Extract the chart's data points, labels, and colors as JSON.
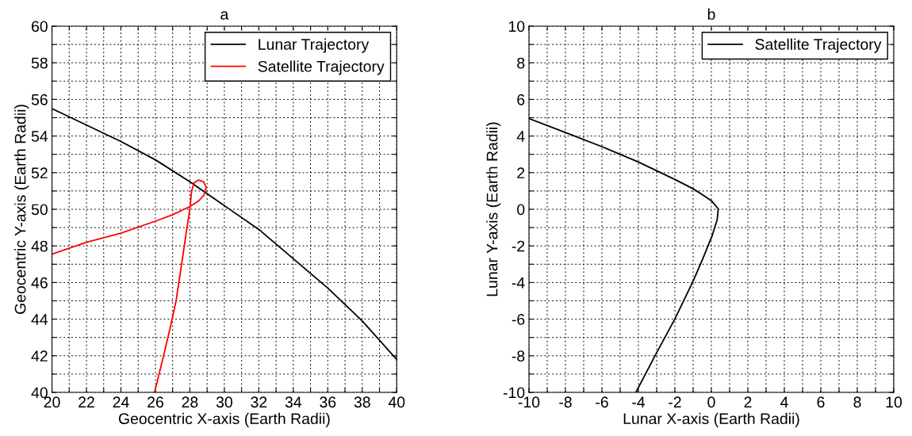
{
  "chart_data": [
    {
      "type": "line",
      "title": "a",
      "xlabel": "Geocentric X-axis (Earth Radii)",
      "ylabel": "Geocentric Y-axis (Earth Radii)",
      "xlim": [
        20,
        40
      ],
      "ylim": [
        40,
        60
      ],
      "xticks": [
        20,
        {
          "value": 21,
          "label": null
        },
        22,
        {
          "value": 23,
          "label": null
        },
        24,
        {
          "value": 25,
          "label": null
        },
        26,
        {
          "value": 27,
          "label": null
        },
        28,
        {
          "value": 29,
          "label": null
        },
        30,
        {
          "value": 31,
          "label": null
        },
        32,
        {
          "value": 33,
          "label": null
        },
        34,
        {
          "value": 35,
          "label": null
        },
        36,
        {
          "value": 37,
          "label": null
        },
        38,
        {
          "value": 39,
          "label": null
        },
        40
      ],
      "yticks": [
        40,
        {
          "value": 41,
          "label": null
        },
        42,
        {
          "value": 43,
          "label": null
        },
        44,
        {
          "value": 45,
          "label": null
        },
        46,
        {
          "value": 47,
          "label": null
        },
        48,
        {
          "value": 49,
          "label": null
        },
        50,
        {
          "value": 51,
          "label": null
        },
        52,
        {
          "value": 53,
          "label": null
        },
        54,
        {
          "value": 55,
          "label": null
        },
        56,
        {
          "value": 57,
          "label": null
        },
        58,
        {
          "value": 59,
          "label": null
        },
        60
      ],
      "grid": true,
      "legend": "top right",
      "series": [
        {
          "name": "Lunar Trajectory",
          "color": "#000000",
          "x": [
            20,
            22,
            24,
            26,
            28,
            30,
            32,
            34,
            36,
            38,
            40
          ],
          "values": [
            55.5,
            54.6,
            53.7,
            52.7,
            51.5,
            50.2,
            48.9,
            47.3,
            45.7,
            43.9,
            41.8
          ]
        },
        {
          "name": "Satellite Trajectory",
          "color": "#ff0000",
          "x": [
            20,
            22,
            24,
            26,
            27,
            28,
            28.5,
            28.8,
            28.95,
            28.8,
            28.5,
            28.25,
            28.1,
            28.0,
            27.8,
            27.6,
            27.2,
            26.9,
            26.5,
            25.95
          ],
          "values": [
            47.55,
            48.2,
            48.7,
            49.35,
            49.7,
            50.15,
            50.45,
            50.75,
            51.2,
            51.5,
            51.6,
            51.45,
            51.0,
            50.0,
            48.8,
            47.5,
            45.0,
            43.7,
            42.1,
            40.0
          ]
        }
      ]
    },
    {
      "type": "line",
      "title": "b",
      "xlabel": "Lunar X-axis (Earth Radii)",
      "ylabel": "Lunar Y-axis (Earth Radii)",
      "xlim": [
        -10,
        10
      ],
      "ylim": [
        -10,
        10
      ],
      "xticks": [
        -10,
        {
          "value": -9,
          "label": null
        },
        -8,
        {
          "value": -7,
          "label": null
        },
        -6,
        {
          "value": -5,
          "label": null
        },
        -4,
        {
          "value": -3,
          "label": null
        },
        -2,
        {
          "value": -1,
          "label": null
        },
        0,
        {
          "value": 1,
          "label": null
        },
        2,
        {
          "value": 3,
          "label": null
        },
        4,
        {
          "value": 5,
          "label": null
        },
        6,
        {
          "value": 7,
          "label": null
        },
        8,
        {
          "value": 9,
          "label": null
        },
        10
      ],
      "yticks": [
        -10,
        {
          "value": -9,
          "label": null
        },
        -8,
        {
          "value": -7,
          "label": null
        },
        -6,
        {
          "value": -5,
          "label": null
        },
        -4,
        {
          "value": -3,
          "label": null
        },
        -2,
        {
          "value": -1,
          "label": null
        },
        0,
        {
          "value": 1,
          "label": null
        },
        2,
        {
          "value": 3,
          "label": null
        },
        4,
        {
          "value": 5,
          "label": null
        },
        6,
        {
          "value": 7,
          "label": null
        },
        8,
        {
          "value": 9,
          "label": null
        },
        10
      ],
      "grid": true,
      "legend": "top right",
      "series": [
        {
          "name": "Satellite Trajectory",
          "color": "#000000",
          "x": [
            -10,
            -8,
            -6,
            -4,
            -2,
            -1,
            -0.4,
            0.03,
            0.38,
            0.32,
            0.03,
            -0.47,
            -1,
            -2,
            -3,
            -4.14
          ],
          "values": [
            4.95,
            4.19,
            3.42,
            2.58,
            1.63,
            1.12,
            0.74,
            0.44,
            0.02,
            -0.56,
            -1.48,
            -2.7,
            -3.92,
            -5.99,
            -7.83,
            -10
          ]
        }
      ]
    }
  ]
}
